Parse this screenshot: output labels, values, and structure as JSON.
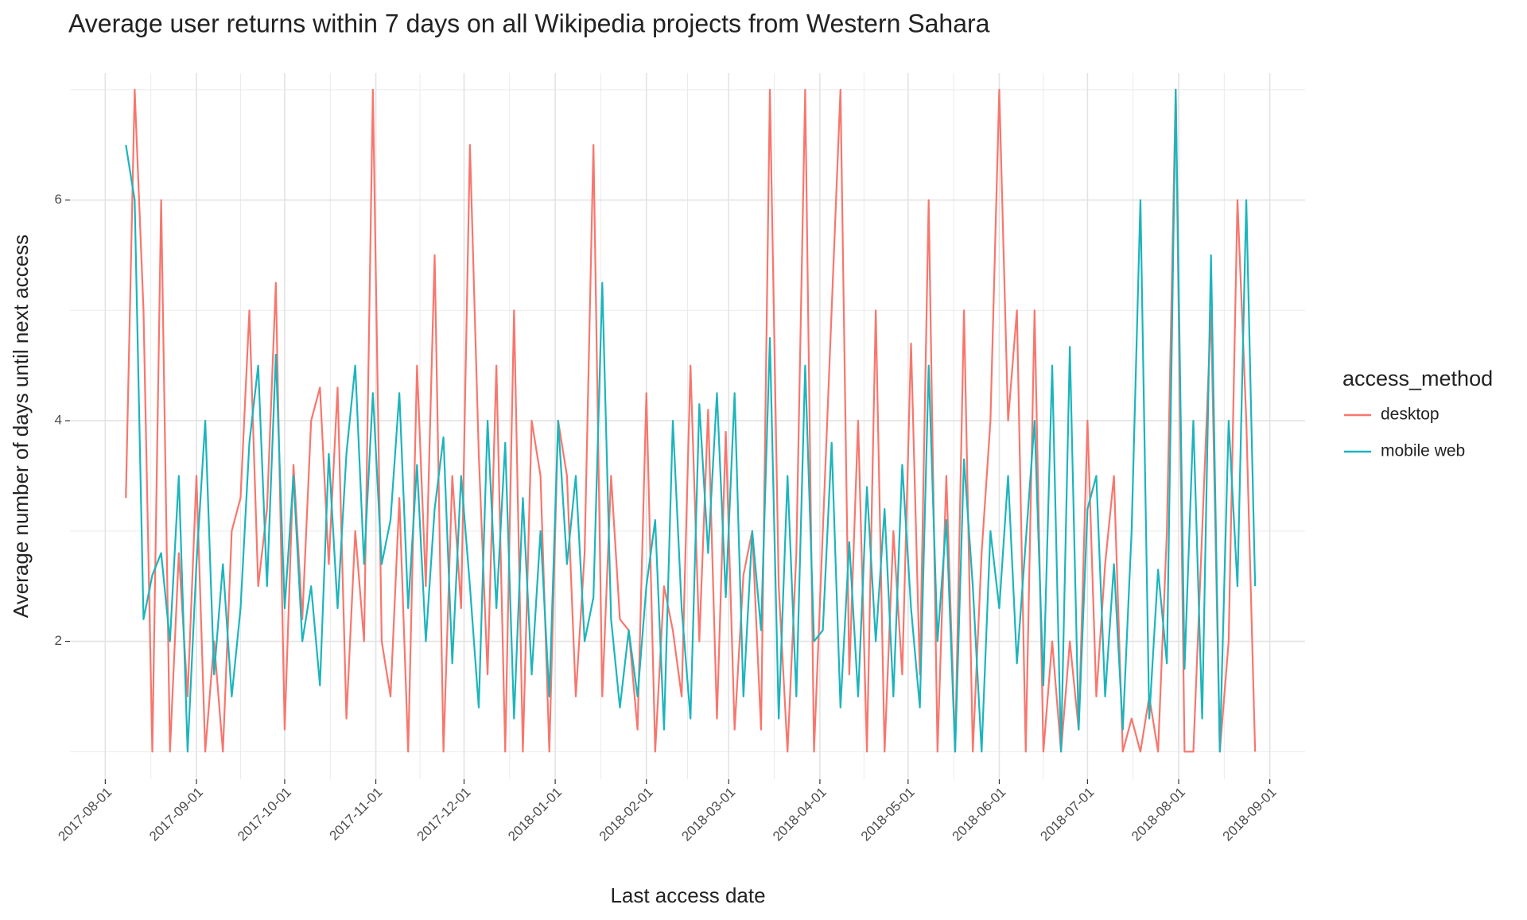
{
  "chart_data": {
    "type": "line",
    "title": "Average user returns within 7 days on all Wikipedia projects from Western Sahara",
    "x_label": "Last access date",
    "y_label": "Average number of days until next access",
    "legend_title": "access_method",
    "legend_position": "right",
    "grid": true,
    "x": [
      "2017-08-08",
      "2017-08-11",
      "2017-08-14",
      "2017-08-17",
      "2017-08-20",
      "2017-08-23",
      "2017-08-26",
      "2017-08-29",
      "2017-09-01",
      "2017-09-04",
      "2017-09-07",
      "2017-09-10",
      "2017-09-13",
      "2017-09-16",
      "2017-09-19",
      "2017-09-22",
      "2017-09-25",
      "2017-09-28",
      "2017-10-01",
      "2017-10-04",
      "2017-10-07",
      "2017-10-10",
      "2017-10-13",
      "2017-10-16",
      "2017-10-19",
      "2017-10-22",
      "2017-10-25",
      "2017-10-28",
      "2017-10-31",
      "2017-11-03",
      "2017-11-06",
      "2017-11-09",
      "2017-11-12",
      "2017-11-15",
      "2017-11-18",
      "2017-11-21",
      "2017-11-24",
      "2017-11-27",
      "2017-11-30",
      "2017-12-03",
      "2017-12-06",
      "2017-12-09",
      "2017-12-12",
      "2017-12-15",
      "2017-12-18",
      "2017-12-21",
      "2017-12-24",
      "2017-12-27",
      "2017-12-30",
      "2018-01-02",
      "2018-01-05",
      "2018-01-08",
      "2018-01-11",
      "2018-01-14",
      "2018-01-17",
      "2018-01-20",
      "2018-01-23",
      "2018-01-26",
      "2018-01-29",
      "2018-02-01",
      "2018-02-04",
      "2018-02-07",
      "2018-02-10",
      "2018-02-13",
      "2018-02-16",
      "2018-02-19",
      "2018-02-22",
      "2018-02-25",
      "2018-02-28",
      "2018-03-03",
      "2018-03-06",
      "2018-03-09",
      "2018-03-12",
      "2018-03-15",
      "2018-03-18",
      "2018-03-21",
      "2018-03-24",
      "2018-03-27",
      "2018-03-30",
      "2018-04-02",
      "2018-04-05",
      "2018-04-08",
      "2018-04-11",
      "2018-04-14",
      "2018-04-17",
      "2018-04-20",
      "2018-04-23",
      "2018-04-26",
      "2018-04-29",
      "2018-05-02",
      "2018-05-05",
      "2018-05-08",
      "2018-05-11",
      "2018-05-14",
      "2018-05-17",
      "2018-05-20",
      "2018-05-23",
      "2018-05-26",
      "2018-05-29",
      "2018-06-01",
      "2018-06-04",
      "2018-06-07",
      "2018-06-10",
      "2018-06-13",
      "2018-06-16",
      "2018-06-19",
      "2018-06-22",
      "2018-06-25",
      "2018-06-28",
      "2018-07-01",
      "2018-07-04",
      "2018-07-07",
      "2018-07-10",
      "2018-07-13",
      "2018-07-16",
      "2018-07-19",
      "2018-07-22",
      "2018-07-25",
      "2018-07-28",
      "2018-07-31",
      "2018-08-03",
      "2018-08-06",
      "2018-08-09",
      "2018-08-12",
      "2018-08-15",
      "2018-08-18",
      "2018-08-21",
      "2018-08-24",
      "2018-08-27"
    ],
    "series": [
      {
        "name": "desktop",
        "color": "#f8766d",
        "values": [
          3.3,
          7,
          5,
          1,
          6,
          1,
          2.8,
          1.5,
          3.5,
          1,
          2,
          1,
          3,
          3.3,
          5,
          2.5,
          3.2,
          5.25,
          1.2,
          3.6,
          2.2,
          4,
          4.3,
          2.7,
          4.3,
          1.3,
          3,
          2,
          7,
          2,
          1.5,
          3.3,
          1,
          4.5,
          2.5,
          5.5,
          1,
          3.5,
          2.3,
          6.5,
          3.7,
          1.7,
          4.5,
          1,
          5,
          1,
          4,
          3.5,
          1,
          4,
          3.5,
          1.5,
          2.8,
          6.5,
          1.5,
          3.5,
          2.2,
          2.1,
          1.2,
          4.25,
          1,
          2.5,
          2.1,
          1.5,
          4.5,
          2,
          4.1,
          1.3,
          3.9,
          1.2,
          2.6,
          3,
          1.2,
          7,
          2.5,
          1,
          2.8,
          7,
          1,
          3,
          5,
          7,
          1.7,
          4,
          1,
          5,
          1,
          3,
          1.7,
          4.7,
          1.7,
          6,
          1,
          3.5,
          1,
          5,
          1,
          2.8,
          4,
          7,
          4,
          5,
          1,
          5,
          1,
          2,
          1,
          2,
          1.2,
          4,
          1.5,
          2.7,
          3.5,
          1,
          1.3,
          1,
          1.5,
          1,
          3,
          7,
          1,
          1,
          3,
          5,
          1,
          2,
          6,
          4,
          1
        ]
      },
      {
        "name": "mobile web",
        "color": "#1bb5bc",
        "values": [
          6.5,
          6,
          2.2,
          2.6,
          2.8,
          2,
          3.5,
          1,
          2.7,
          4,
          1.7,
          2.7,
          1.5,
          2.3,
          3.8,
          4.5,
          2.5,
          4.6,
          2.3,
          3.5,
          2,
          2.5,
          1.6,
          3.7,
          2.3,
          3.7,
          4.5,
          2.7,
          4.25,
          2.7,
          3.1,
          4.25,
          2.3,
          3.6,
          2,
          3.2,
          3.85,
          1.8,
          3.5,
          2.5,
          1.4,
          4,
          2.3,
          3.8,
          1.3,
          3.3,
          1.7,
          3,
          1.5,
          4,
          2.7,
          3.5,
          2,
          2.4,
          5.25,
          2.2,
          1.4,
          2.1,
          1.5,
          2.5,
          3.1,
          1.2,
          4,
          2.3,
          1.3,
          4.15,
          2.8,
          4.25,
          2.4,
          4.25,
          1.5,
          3,
          2.1,
          4.75,
          1.3,
          3.5,
          1.5,
          4.5,
          2,
          2.1,
          3.8,
          1.4,
          2.9,
          1.5,
          3.4,
          2,
          3.2,
          1.5,
          3.6,
          2.3,
          1.4,
          4.5,
          2,
          3.1,
          1,
          3.65,
          2.5,
          1,
          3,
          2.3,
          3.5,
          1.8,
          2.9,
          4,
          1.6,
          4.5,
          1,
          4.67,
          1.2,
          3.2,
          3.5,
          1.5,
          2.7,
          1.2,
          3,
          6,
          1.3,
          2.65,
          1.8,
          7,
          1.75,
          4,
          1.3,
          5.5,
          1,
          4,
          2.5,
          6,
          2.5
        ]
      }
    ],
    "xlim": [
      "2017-07-20",
      "2018-09-13"
    ],
    "xticks": [
      "2017-08-01",
      "2017-09-01",
      "2017-10-01",
      "2017-11-01",
      "2017-12-01",
      "2018-01-01",
      "2018-02-01",
      "2018-03-01",
      "2018-04-01",
      "2018-05-01",
      "2018-06-01",
      "2018-07-01",
      "2018-08-01",
      "2018-09-01"
    ],
    "ylim": [
      0.75,
      7.15
    ],
    "yticks": [
      2,
      4,
      6
    ]
  }
}
